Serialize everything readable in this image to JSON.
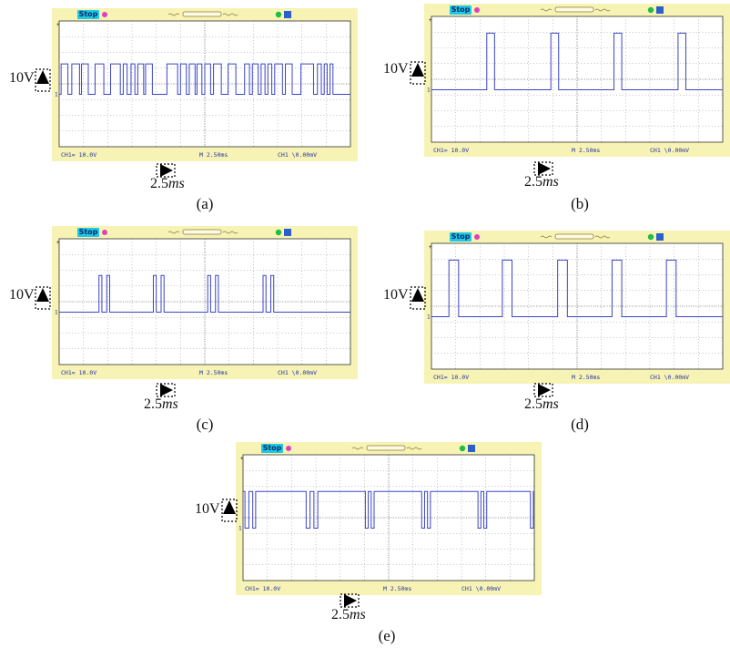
{
  "figure": {
    "volt_scale_label": "10V",
    "time_scale_label_prefix": "2.5",
    "time_scale_label_unit": "ms"
  },
  "chart_data": [
    {
      "type": "line",
      "caption": "(a)",
      "status": "Stop",
      "ch1_readout": "CH1= 10.0V",
      "timebase_readout": "M 2.50ms",
      "trigger_readout": "CH1 \\0.00mV",
      "x_unit": "ms",
      "y_unit": "V",
      "xlim": [
        0,
        30
      ],
      "ylim": [
        -25,
        35
      ],
      "high_level_v": 14.5,
      "pulses_ms": [
        [
          0.2,
          0.9
        ],
        [
          1.3,
          2.1
        ],
        [
          2.3,
          3.0
        ],
        [
          3.7,
          4.6
        ],
        [
          5.3,
          6.3
        ],
        [
          6.6,
          7.0
        ],
        [
          7.4,
          7.8
        ],
        [
          8.1,
          8.7
        ],
        [
          8.9,
          9.6
        ],
        [
          11.1,
          12.2
        ],
        [
          12.5,
          13.1
        ],
        [
          13.4,
          14.0
        ],
        [
          14.2,
          14.7
        ],
        [
          15.0,
          15.6
        ],
        [
          15.9,
          16.7
        ],
        [
          17.4,
          18.2
        ],
        [
          19.1,
          19.6
        ],
        [
          19.9,
          20.5
        ],
        [
          20.8,
          21.2
        ],
        [
          21.5,
          21.9
        ],
        [
          22.2,
          23.0
        ],
        [
          23.3,
          24.0
        ],
        [
          24.9,
          26.2
        ],
        [
          26.6,
          27.0
        ],
        [
          27.3,
          27.6
        ],
        [
          27.9,
          28.2
        ]
      ]
    },
    {
      "type": "line",
      "caption": "(b)",
      "status": "Stop",
      "ch1_readout": "CH1= 10.0V",
      "timebase_readout": "M 2.50ms",
      "trigger_readout": "CH1 \\0.00mV",
      "x_unit": "ms",
      "y_unit": "V",
      "xlim": [
        0,
        30
      ],
      "ylim": [
        -25,
        35
      ],
      "high_level_v": 27,
      "pulses_ms": [
        [
          5.7,
          6.5
        ],
        [
          12.3,
          13.1
        ],
        [
          18.8,
          19.6
        ],
        [
          25.4,
          26.2
        ]
      ]
    },
    {
      "type": "line",
      "caption": "(c)",
      "status": "Stop",
      "ch1_readout": "CH1= 10.0V",
      "timebase_readout": "M 2.50ms",
      "trigger_readout": "CH1 \\0.00mV",
      "x_unit": "ms",
      "y_unit": "V",
      "xlim": [
        0,
        30
      ],
      "ylim": [
        -25,
        35
      ],
      "high_level_v": 17.5,
      "pulses_ms": [
        [
          4.1,
          4.4
        ],
        [
          4.9,
          5.2
        ],
        [
          9.7,
          10.0
        ],
        [
          10.5,
          10.8
        ],
        [
          15.3,
          15.6
        ],
        [
          16.1,
          16.4
        ],
        [
          21.0,
          21.3
        ],
        [
          21.8,
          22.1
        ]
      ]
    },
    {
      "type": "line",
      "caption": "(d)",
      "status": "Stop",
      "ch1_readout": "CH1= 10.0V",
      "timebase_readout": "M 2.50ms",
      "trigger_readout": "CH1 \\0.00mV",
      "x_unit": "ms",
      "y_unit": "V",
      "xlim": [
        0,
        30
      ],
      "ylim": [
        -25,
        35
      ],
      "high_level_v": 27,
      "pulses_ms": [
        [
          1.8,
          2.8
        ],
        [
          7.3,
          8.3
        ],
        [
          13.0,
          14.0
        ],
        [
          18.6,
          19.6
        ],
        [
          24.2,
          25.2
        ]
      ]
    },
    {
      "type": "line",
      "caption": "(e)",
      "status": "Stop",
      "ch1_readout": "CH1= 10.0V",
      "timebase_readout": "M 2.50ms",
      "trigger_readout": "CH1 \\0.00mV",
      "x_unit": "ms",
      "y_unit": "V",
      "xlim": [
        0,
        30
      ],
      "ylim": [
        -25,
        35
      ],
      "high_level_v": 17.5,
      "low_level_v": 0,
      "inverted": true,
      "dips_ms": [
        [
          0.2,
          0.6
        ],
        [
          1.0,
          1.3
        ],
        [
          6.5,
          6.9
        ],
        [
          7.3,
          7.7
        ],
        [
          12.6,
          12.9
        ],
        [
          13.2,
          13.5
        ],
        [
          18.4,
          18.7
        ],
        [
          19.0,
          19.3
        ],
        [
          24.2,
          24.5
        ],
        [
          24.8,
          25.1
        ],
        [
          29.6,
          29.9
        ]
      ]
    }
  ]
}
